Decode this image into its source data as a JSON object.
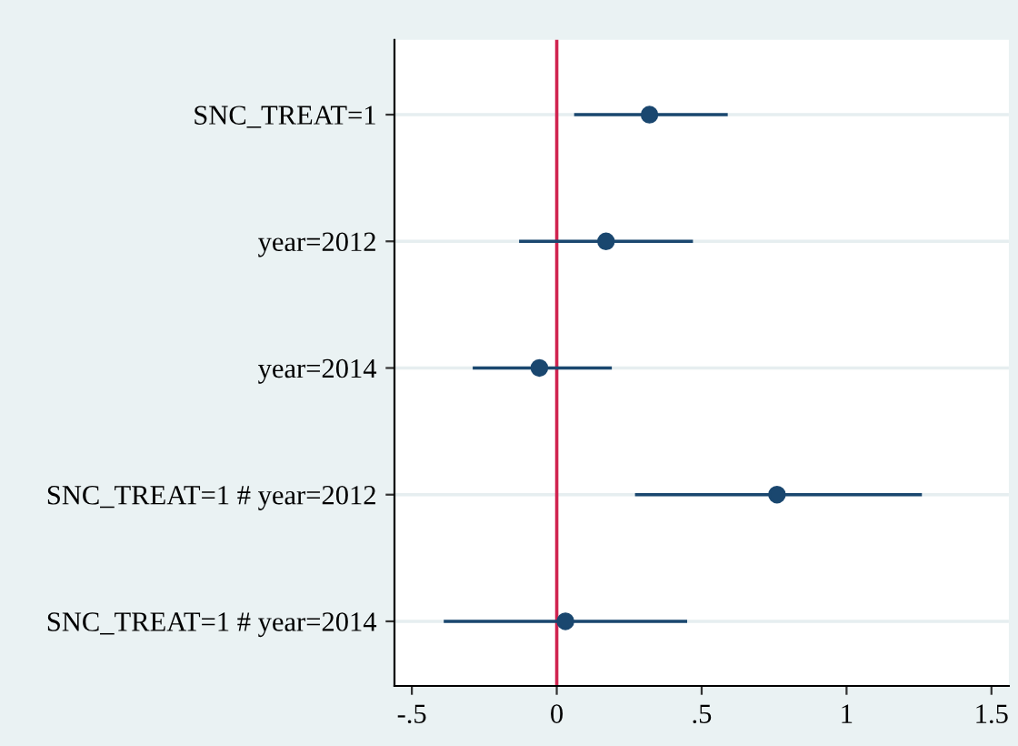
{
  "chart_data": {
    "type": "scatter",
    "orientation": "horizontal",
    "categories": [
      "SNC_TREAT=1",
      "year=2012",
      "year=2014",
      "SNC_TREAT=1 # year=2012",
      "SNC_TREAT=1 # year=2014"
    ],
    "color": "#1a476f",
    "values": [
      0.32,
      0.17,
      -0.06,
      0.76,
      0.03
    ],
    "errors": [
      [
        0.06,
        0.59
      ],
      [
        -0.13,
        0.47
      ],
      [
        -0.29,
        0.19
      ],
      [
        0.27,
        1.26
      ],
      [
        -0.39,
        0.45
      ]
    ],
    "xlim": [
      -0.56,
      1.56
    ],
    "xticks": [
      {
        "value": -0.5,
        "label": "-.5"
      },
      0,
      {
        "value": 0.5,
        "label": ".5"
      },
      1,
      1.5
    ],
    "ref_lines": [
      {
        "axis": "x",
        "value": 0,
        "color": "#d0234f"
      }
    ],
    "grid": "y",
    "marker": "circle",
    "legend": false
  }
}
